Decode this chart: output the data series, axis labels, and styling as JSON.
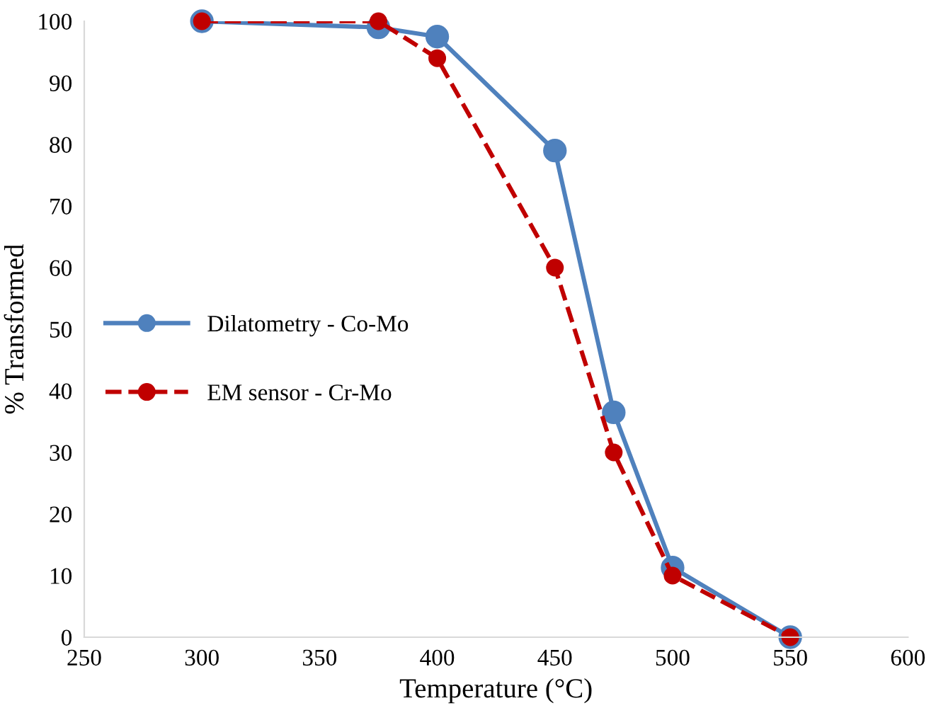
{
  "chart_data": {
    "type": "line",
    "xlabel": "Temperature (°C)",
    "ylabel": "% Transformed",
    "x": [
      300,
      375,
      400,
      450,
      475,
      500,
      550
    ],
    "series": [
      {
        "name": "Dilatometry - Co-Mo",
        "color": "#4f81bd",
        "values": [
          100,
          99,
          97.5,
          79,
          36.5,
          11.3,
          0
        ],
        "line_style": "solid"
      },
      {
        "name": "EM sensor - Cr-Mo",
        "color": "#c00000",
        "values": [
          100,
          100,
          94,
          60,
          30,
          10,
          0
        ],
        "line_style": "dashed"
      }
    ],
    "marker": "circle",
    "xlim": [
      250,
      600
    ],
    "xticks": [
      250,
      300,
      350,
      400,
      450,
      500,
      550,
      600
    ],
    "ylim": [
      0,
      100
    ],
    "yticks": [
      0,
      10,
      20,
      30,
      40,
      50,
      60,
      70,
      80,
      90,
      100
    ],
    "grid": false,
    "legend": "left"
  }
}
